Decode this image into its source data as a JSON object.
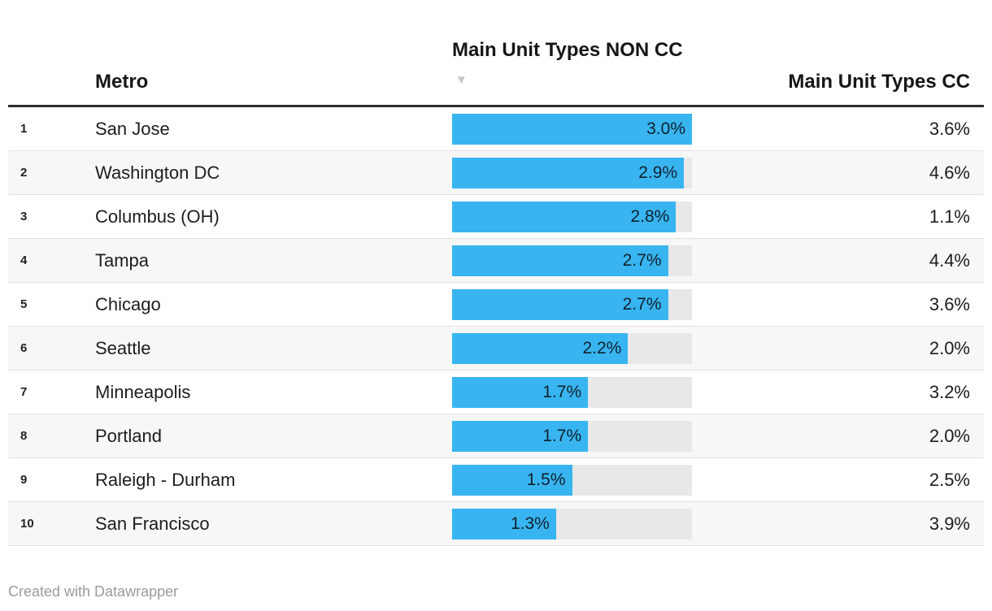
{
  "header": {
    "metro_label": "Metro",
    "non_cc_label": "Main Unit Types NON CC",
    "cc_label": "Main Unit Types CC",
    "sort_icon": "▼"
  },
  "chart_data": {
    "type": "table",
    "columns": [
      "Metro",
      "Main Unit Types NON CC",
      "Main Unit Types CC"
    ],
    "bar_column": "Main Unit Types NON CC",
    "bar_scale_max": 3.0,
    "sort": {
      "column": "Main Unit Types NON CC",
      "direction": "desc"
    },
    "rows": [
      {
        "rank": 1,
        "metro": "San Jose",
        "non_cc": 3.0,
        "cc": 3.6
      },
      {
        "rank": 2,
        "metro": "Washington DC",
        "non_cc": 2.9,
        "cc": 4.6
      },
      {
        "rank": 3,
        "metro": "Columbus (OH)",
        "non_cc": 2.8,
        "cc": 1.1
      },
      {
        "rank": 4,
        "metro": "Tampa",
        "non_cc": 2.7,
        "cc": 4.4
      },
      {
        "rank": 5,
        "metro": "Chicago",
        "non_cc": 2.7,
        "cc": 3.6
      },
      {
        "rank": 6,
        "metro": "Seattle",
        "non_cc": 2.2,
        "cc": 2.0
      },
      {
        "rank": 7,
        "metro": "Minneapolis",
        "non_cc": 1.7,
        "cc": 3.2
      },
      {
        "rank": 8,
        "metro": "Portland",
        "non_cc": 1.7,
        "cc": 2.0
      },
      {
        "rank": 9,
        "metro": "Raleigh - Durham",
        "non_cc": 1.5,
        "cc": 2.5
      },
      {
        "rank": 10,
        "metro": "San Francisco",
        "non_cc": 1.3,
        "cc": 3.9
      }
    ]
  },
  "footer": {
    "attribution": "Created with Datawrapper"
  },
  "colors": {
    "bar": "#38b5f0",
    "track": "#e8e8e8",
    "alt_row": "#f7f7f7",
    "header_rule": "#2e2e2e",
    "row_separator": "#e2e2e2",
    "text": "#1d1d1d",
    "footer_text": "#9b9b9b",
    "sort_arrow": "#c6c6c6"
  }
}
